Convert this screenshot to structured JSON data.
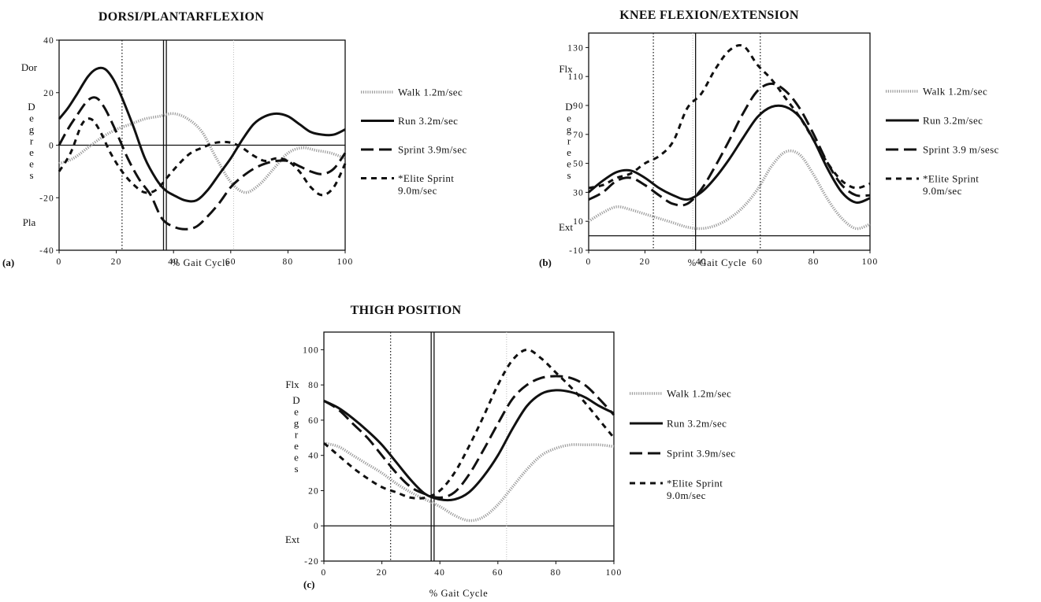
{
  "chart_data": [
    {
      "type": "line",
      "panel_label": "(a)",
      "title": "DORSI/PLANTARFLEXION",
      "xlabel": "% Gait Cycle",
      "ylabel": "Degrees",
      "y_top_label": "Dor",
      "y_bottom_label": "Pla",
      "xlim": [
        0,
        100
      ],
      "ylim": [
        -40,
        40
      ],
      "xticks": [
        0,
        20,
        40,
        60,
        80,
        100
      ],
      "yticks": [
        40,
        20,
        0,
        -20,
        -40
      ],
      "vlines": [
        {
          "x": 22,
          "style": "dotted"
        },
        {
          "x": 36.5,
          "style": "solid"
        },
        {
          "x": 37.5,
          "style": "solid"
        },
        {
          "x": 61,
          "style": "faint"
        }
      ],
      "zero_line": true,
      "series": [
        {
          "name": "Walk  1.2m/sec",
          "style": "walk",
          "x": [
            0,
            5,
            10,
            15,
            20,
            25,
            30,
            35,
            40,
            45,
            50,
            55,
            60,
            65,
            70,
            75,
            80,
            85,
            90,
            95,
            100
          ],
          "y": [
            -7,
            -5,
            -1,
            3,
            6,
            8,
            10,
            11,
            12,
            10,
            5,
            -5,
            -14,
            -18,
            -15,
            -9,
            -3,
            -1,
            -2,
            -3,
            -5
          ]
        },
        {
          "name": "Run   3.2m/sec",
          "style": "run",
          "x": [
            0,
            3,
            6,
            10,
            13,
            16,
            19,
            22,
            26,
            30,
            34,
            37,
            40,
            44,
            48,
            52,
            56,
            60,
            64,
            68,
            72,
            76,
            80,
            84,
            88,
            92,
            96,
            100
          ],
          "y": [
            10,
            14,
            19,
            26,
            29,
            29,
            25,
            18,
            7,
            -5,
            -13,
            -17,
            -19,
            -21,
            -21,
            -17,
            -11,
            -5,
            2,
            8,
            11,
            12,
            11,
            8,
            5,
            4,
            4,
            6
          ]
        },
        {
          "name": "Sprint  3.9m/sec",
          "style": "sprint",
          "x": [
            0,
            3,
            6,
            10,
            13,
            16,
            20,
            24,
            28,
            32,
            36,
            40,
            44,
            48,
            52,
            56,
            60,
            64,
            68,
            72,
            76,
            80,
            84,
            88,
            92,
            96,
            100
          ],
          "y": [
            0,
            6,
            11,
            17,
            18,
            14,
            5,
            -5,
            -13,
            -19,
            -28,
            -31,
            -32,
            -31,
            -27,
            -22,
            -16,
            -12,
            -9,
            -7,
            -6,
            -6,
            -8,
            -10,
            -11,
            -9,
            -3
          ]
        },
        {
          "name": "*Elite  Sprint",
          "name_line2": "9.0m/sec",
          "style": "elite",
          "x": [
            0,
            4,
            8,
            11,
            14,
            18,
            22,
            26,
            30,
            34,
            38,
            42,
            46,
            50,
            55,
            60,
            64,
            68,
            72,
            76,
            80,
            84,
            88,
            92,
            96,
            100
          ],
          "y": [
            -10,
            -3,
            8,
            10,
            6,
            -3,
            -10,
            -15,
            -18,
            -17,
            -12,
            -7,
            -3,
            -1,
            1,
            1,
            -1,
            -4,
            -6,
            -5,
            -6,
            -10,
            -16,
            -19,
            -16,
            -7
          ]
        }
      ]
    },
    {
      "type": "line",
      "panel_label": "(b)",
      "title": "KNEE FLEXION/EXTENSION",
      "xlabel": "% Gait Cycle",
      "ylabel": "Degrees",
      "y_top_label": "Flx",
      "y_bottom_label": "Ext",
      "xlim": [
        0,
        100
      ],
      "ylim": [
        -10,
        140
      ],
      "xticks": [
        0,
        20,
        40,
        60,
        80,
        100
      ],
      "yticks": [
        130,
        110,
        90,
        70,
        50,
        30,
        10,
        -10
      ],
      "vlines": [
        {
          "x": 23,
          "style": "dotted"
        },
        {
          "x": 37,
          "style": "faint"
        },
        {
          "x": 38,
          "style": "solid"
        },
        {
          "x": 61,
          "style": "dotted"
        }
      ],
      "zero_line": true,
      "series": [
        {
          "name": "Walk  1.2m/sec",
          "style": "walk",
          "x": [
            0,
            5,
            10,
            15,
            20,
            25,
            30,
            35,
            40,
            45,
            50,
            55,
            60,
            65,
            70,
            75,
            80,
            85,
            90,
            95,
            100
          ],
          "y": [
            10,
            16,
            20,
            18,
            15,
            12,
            9,
            6,
            5,
            7,
            12,
            20,
            32,
            48,
            58,
            56,
            42,
            25,
            12,
            5,
            8
          ]
        },
        {
          "name": "Run   3.2m/sec",
          "style": "run",
          "x": [
            0,
            5,
            10,
            15,
            20,
            25,
            30,
            35,
            40,
            45,
            50,
            55,
            60,
            65,
            70,
            75,
            80,
            85,
            90,
            95,
            100
          ],
          "y": [
            30,
            38,
            44,
            45,
            40,
            33,
            28,
            25,
            30,
            40,
            53,
            68,
            82,
            89,
            89,
            82,
            66,
            46,
            30,
            23,
            26
          ]
        },
        {
          "name": "Sprint  3.9 m/sesc",
          "style": "sprint",
          "x": [
            0,
            5,
            10,
            15,
            20,
            25,
            30,
            35,
            40,
            45,
            50,
            55,
            60,
            65,
            70,
            75,
            80,
            85,
            90,
            95,
            100
          ],
          "y": [
            25,
            30,
            38,
            40,
            35,
            28,
            22,
            22,
            32,
            48,
            66,
            85,
            100,
            105,
            100,
            88,
            70,
            50,
            35,
            28,
            28
          ]
        },
        {
          "name": "*Elite  Sprint",
          "name_line2": "9.0m/sec",
          "style": "elite",
          "x": [
            0,
            5,
            10,
            15,
            20,
            25,
            30,
            35,
            40,
            45,
            50,
            55,
            60,
            65,
            70,
            75,
            80,
            85,
            90,
            95,
            100
          ],
          "y": [
            33,
            35,
            40,
            43,
            50,
            55,
            65,
            88,
            98,
            115,
            128,
            131,
            118,
            108,
            95,
            82,
            66,
            50,
            38,
            33,
            36
          ]
        }
      ]
    },
    {
      "type": "line",
      "panel_label": "(c)",
      "title": "THIGH POSITION",
      "xlabel": "% Gait Cycle",
      "ylabel": "Degrees",
      "y_top_label": "Flx",
      "y_bottom_label": "Ext",
      "xlim": [
        0,
        100
      ],
      "ylim": [
        -20,
        110
      ],
      "xticks": [
        0,
        20,
        40,
        60,
        80,
        100
      ],
      "yticks": [
        100,
        80,
        60,
        40,
        20,
        0,
        -20
      ],
      "vlines": [
        {
          "x": 23,
          "style": "dotted"
        },
        {
          "x": 37,
          "style": "solid"
        },
        {
          "x": 38,
          "style": "solid"
        },
        {
          "x": 63,
          "style": "faint"
        }
      ],
      "zero_line": true,
      "series": [
        {
          "name": "Walk  1.2m/sec",
          "style": "walk",
          "x": [
            0,
            5,
            10,
            15,
            20,
            25,
            30,
            35,
            40,
            45,
            50,
            55,
            60,
            65,
            70,
            75,
            80,
            85,
            90,
            95,
            100
          ],
          "y": [
            47,
            45,
            40,
            35,
            30,
            24,
            19,
            15,
            11,
            6,
            3,
            5,
            12,
            22,
            32,
            40,
            44,
            46,
            46,
            46,
            45
          ]
        },
        {
          "name": "Run   3.2m/sec",
          "style": "run",
          "x": [
            0,
            5,
            10,
            15,
            20,
            25,
            30,
            35,
            40,
            45,
            50,
            55,
            60,
            65,
            70,
            75,
            80,
            85,
            90,
            95,
            100
          ],
          "y": [
            71,
            67,
            61,
            54,
            46,
            36,
            26,
            18,
            15,
            15,
            19,
            28,
            40,
            55,
            68,
            75,
            77,
            76,
            73,
            68,
            64
          ]
        },
        {
          "name": "Sprint  3.9m/sec",
          "style": "sprint",
          "x": [
            0,
            5,
            10,
            15,
            20,
            25,
            30,
            35,
            40,
            45,
            50,
            55,
            60,
            65,
            70,
            75,
            80,
            85,
            90,
            95,
            100
          ],
          "y": [
            71,
            66,
            58,
            50,
            40,
            30,
            22,
            18,
            16,
            19,
            29,
            43,
            58,
            72,
            80,
            84,
            85,
            84,
            80,
            72,
            63
          ]
        },
        {
          "name": "*Elite  Sprint",
          "name_line2": "9.0m/sec",
          "style": "elite",
          "x": [
            0,
            5,
            10,
            15,
            20,
            25,
            30,
            35,
            40,
            45,
            50,
            55,
            60,
            65,
            70,
            75,
            80,
            85,
            90,
            95,
            100
          ],
          "y": [
            47,
            40,
            33,
            27,
            22,
            19,
            16,
            16,
            20,
            30,
            45,
            62,
            80,
            94,
            100,
            95,
            87,
            79,
            70,
            60,
            50
          ]
        }
      ]
    }
  ]
}
